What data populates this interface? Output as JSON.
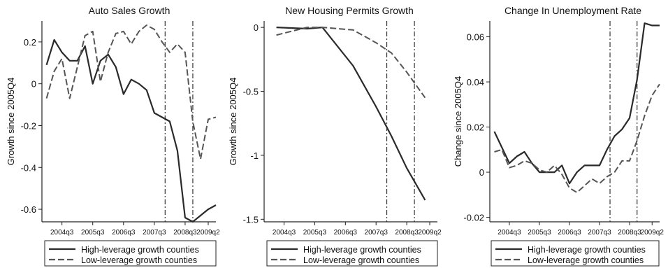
{
  "chart_data": [
    {
      "type": "line",
      "title": "Auto Sales Growth",
      "ylabel": "Growth since 2005Q4",
      "xlabel": "",
      "ylim": [
        -0.66,
        0.3
      ],
      "yticks": [
        0.2,
        0,
        -0.2,
        -0.4,
        -0.6
      ],
      "ytick_labels": [
        "0.2",
        "0",
        "-0.2",
        "-0.4",
        "-0.6"
      ],
      "xlim": [
        2003.85,
        2009.5
      ],
      "xticks": [
        2004.5,
        2005.5,
        2006.5,
        2007.5,
        2008.5,
        2009.25
      ],
      "xtick_labels": [
        "2004q3",
        "2005q3",
        "2006q3",
        "2007q3",
        "2008q3",
        "2009q2"
      ],
      "vlines": [
        2007.85,
        2008.75
      ],
      "legend": [
        "High-leverage growth counties",
        "Low-leverage growth counties"
      ],
      "series": [
        {
          "name": "High-leverage growth counties",
          "style": "solid",
          "x": [
            2004.0,
            2004.25,
            2004.5,
            2004.75,
            2005.0,
            2005.25,
            2005.5,
            2005.75,
            2006.0,
            2006.25,
            2006.5,
            2006.75,
            2007.0,
            2007.25,
            2007.5,
            2007.75,
            2008.0,
            2008.25,
            2008.5,
            2008.75,
            2009.0,
            2009.25,
            2009.5
          ],
          "y": [
            0.09,
            0.21,
            0.15,
            0.11,
            0.11,
            0.18,
            0.0,
            0.11,
            0.14,
            0.08,
            -0.05,
            0.02,
            0.0,
            -0.03,
            -0.14,
            -0.16,
            -0.18,
            -0.32,
            -0.64,
            -0.66,
            -0.63,
            -0.6,
            -0.58
          ]
        },
        {
          "name": "Low-leverage growth counties",
          "style": "dashed",
          "x": [
            2004.0,
            2004.25,
            2004.5,
            2004.75,
            2005.0,
            2005.25,
            2005.5,
            2005.75,
            2006.0,
            2006.25,
            2006.5,
            2006.75,
            2007.0,
            2007.25,
            2007.5,
            2007.75,
            2008.0,
            2008.25,
            2008.5,
            2008.75,
            2009.0,
            2009.25,
            2009.5
          ],
          "y": [
            -0.07,
            0.06,
            0.12,
            -0.07,
            0.08,
            0.23,
            0.25,
            0.01,
            0.15,
            0.24,
            0.25,
            0.19,
            0.25,
            0.28,
            0.26,
            0.2,
            0.15,
            0.19,
            0.15,
            -0.18,
            -0.36,
            -0.17,
            -0.16
          ]
        }
      ]
    },
    {
      "type": "line",
      "title": "New Housing Permits Growth",
      "ylabel": "Growth since 2005Q4",
      "xlabel": "",
      "ylim": [
        -1.52,
        0.05
      ],
      "yticks": [
        0,
        -0.5,
        -1,
        -1.5
      ],
      "ytick_labels": [
        "0",
        "-0.5",
        "-1",
        "-1.5"
      ],
      "xlim": [
        2003.85,
        2009.5
      ],
      "xticks": [
        2004.5,
        2005.5,
        2006.5,
        2007.5,
        2008.5,
        2009.25
      ],
      "xtick_labels": [
        "2004q3",
        "2005q3",
        "2006q3",
        "2007q3",
        "2008q3",
        "2009q2"
      ],
      "vlines": [
        2007.85,
        2008.75
      ],
      "legend": [
        "High-leverage growth counties",
        "Low-leverage growth counties"
      ],
      "series": [
        {
          "name": "High-leverage growth counties",
          "style": "solid",
          "x": [
            2004.25,
            2005.25,
            2005.75,
            2006.75,
            2007.5,
            2008.0,
            2008.5,
            2009.1
          ],
          "y": [
            0.0,
            -0.01,
            0.0,
            -0.3,
            -0.62,
            -0.85,
            -1.1,
            -1.35
          ]
        },
        {
          "name": "Low-leverage growth counties",
          "style": "dashed",
          "x": [
            2004.25,
            2005.25,
            2005.75,
            2006.75,
            2007.5,
            2008.0,
            2008.5,
            2009.1
          ],
          "y": [
            -0.06,
            0.0,
            0.0,
            -0.02,
            -0.12,
            -0.2,
            -0.35,
            -0.55
          ]
        }
      ]
    },
    {
      "type": "line",
      "title": "Change In Unemployment Rate",
      "ylabel": "Change since 2005Q4",
      "xlabel": "",
      "ylim": [
        -0.022,
        0.067
      ],
      "yticks": [
        0.06,
        0.04,
        0.02,
        0,
        -0.02
      ],
      "ytick_labels": [
        "0.06",
        "0.04",
        "0.02",
        "0",
        "-0.02"
      ],
      "xlim": [
        2003.85,
        2009.5
      ],
      "xticks": [
        2004.5,
        2005.5,
        2006.5,
        2007.5,
        2008.5,
        2009.25
      ],
      "xtick_labels": [
        "2004q3",
        "2005q3",
        "2006q3",
        "2007q3",
        "2008q3",
        "2009q2"
      ],
      "vlines": [
        2007.85,
        2008.75
      ],
      "legend": [
        "High-leverage growth counties",
        "Low-leverage growth counties"
      ],
      "series": [
        {
          "name": "High-leverage growth counties",
          "style": "solid",
          "x": [
            2004.0,
            2004.25,
            2004.5,
            2004.75,
            2005.0,
            2005.25,
            2005.5,
            2005.75,
            2006.0,
            2006.25,
            2006.5,
            2006.75,
            2007.0,
            2007.25,
            2007.5,
            2007.75,
            2008.0,
            2008.25,
            2008.5,
            2008.75,
            2009.0,
            2009.25,
            2009.5
          ],
          "y": [
            0.018,
            0.011,
            0.004,
            0.007,
            0.009,
            0.004,
            0.0,
            0.0,
            0.0,
            0.003,
            -0.005,
            0.0,
            0.003,
            0.003,
            0.003,
            0.01,
            0.016,
            0.019,
            0.024,
            0.041,
            0.066,
            0.065,
            0.065
          ]
        },
        {
          "name": "Low-leverage growth counties",
          "style": "dashed",
          "x": [
            2004.0,
            2004.25,
            2004.5,
            2004.75,
            2005.0,
            2005.25,
            2005.5,
            2005.75,
            2006.0,
            2006.25,
            2006.5,
            2006.75,
            2007.0,
            2007.25,
            2007.5,
            2007.75,
            2008.0,
            2008.25,
            2008.5,
            2008.75,
            2009.0,
            2009.25,
            2009.5
          ],
          "y": [
            0.009,
            0.01,
            0.002,
            0.003,
            0.005,
            0.004,
            0.001,
            0.0,
            0.003,
            -0.001,
            -0.007,
            -0.009,
            -0.006,
            -0.003,
            -0.005,
            -0.002,
            0.0,
            0.005,
            0.005,
            0.014,
            0.025,
            0.034,
            0.039
          ]
        }
      ]
    }
  ]
}
